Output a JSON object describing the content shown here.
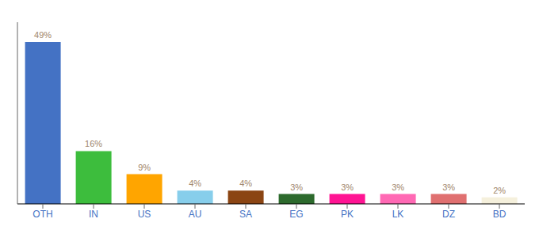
{
  "chart_data": {
    "type": "bar",
    "categories": [
      "OTH",
      "IN",
      "US",
      "AU",
      "SA",
      "EG",
      "PK",
      "LK",
      "DZ",
      "BD"
    ],
    "values": [
      49,
      16,
      9,
      4,
      4,
      3,
      3,
      3,
      3,
      2
    ],
    "value_labels": [
      "49%",
      "16%",
      "9%",
      "4%",
      "4%",
      "3%",
      "3%",
      "3%",
      "3%",
      "2%"
    ],
    "colors": [
      "#4472C4",
      "#3DBD3D",
      "#FFA500",
      "#87CEEB",
      "#8B4513",
      "#2D6A2D",
      "#FF1493",
      "#FF69B4",
      "#E07070",
      "#F5F0DC"
    ],
    "ylim": [
      0,
      55
    ],
    "data_labels": true,
    "tick_labels": "x",
    "grid": false
  }
}
